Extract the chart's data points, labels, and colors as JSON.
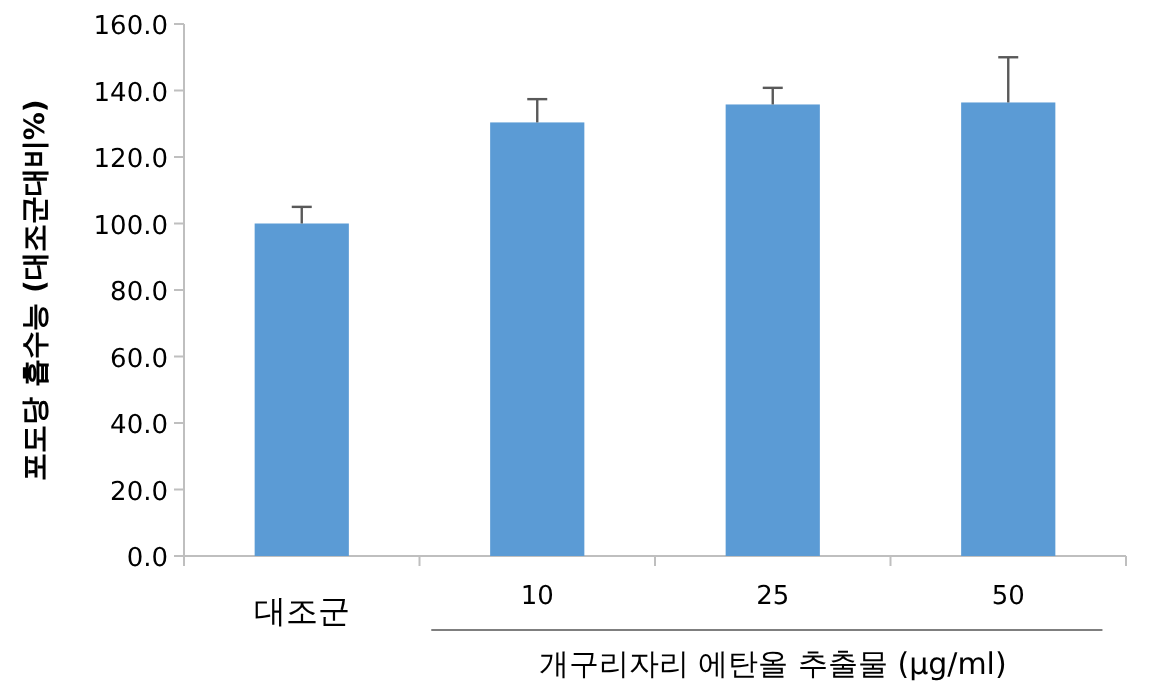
{
  "chart_data": {
    "type": "bar",
    "ylabel": "포도당 흡수능 (대조군대비%)",
    "xlabel": "개구리자리 에탄올 추출물 (μg/ml)",
    "categories": [
      "대조군",
      "10",
      "25",
      "50"
    ],
    "values": [
      100,
      130.4,
      135.8,
      136.4
    ],
    "errors": [
      [
        100,
        105
      ],
      [
        130.4,
        137.4
      ],
      [
        135.8,
        140.8
      ],
      [
        136.4,
        150
      ]
    ],
    "color": "#5b9bd5",
    "ylim": [
      0,
      160
    ],
    "yticks": [
      {
        "value": 0,
        "label": "0.0"
      },
      {
        "value": 20,
        "label": "20.0"
      },
      {
        "value": 40,
        "label": "40.0"
      },
      {
        "value": 60,
        "label": "60.0"
      },
      {
        "value": 80,
        "label": "80.0"
      },
      {
        "value": 100,
        "label": "100.0"
      },
      {
        "value": 120,
        "label": "120.0"
      },
      {
        "value": 140,
        "label": "140.0"
      },
      {
        "value": 160,
        "label": "160.0"
      }
    ],
    "stacked": false
  }
}
